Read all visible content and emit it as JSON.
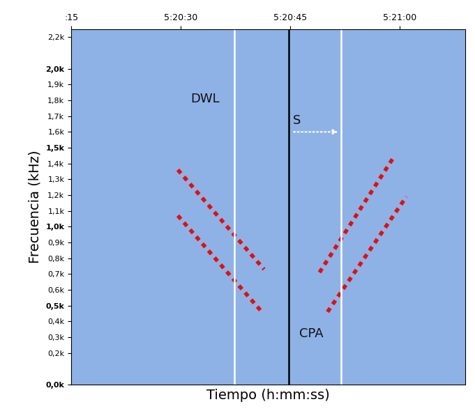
{
  "chart_data": {
    "type": "spectrogram",
    "x_label": "Tiempo (h:mm:ss)",
    "y_label": "Frecuencia (kHz)",
    "xlim": [
      15,
      69
    ],
    "xticks": [
      {
        "value": 15,
        "label": ":15"
      },
      {
        "value": 30,
        "label": "5:20:30"
      },
      {
        "value": 45,
        "label": "5:20:45"
      },
      {
        "value": 60,
        "label": "5:21:00"
      }
    ],
    "ylim": [
      0,
      2.25
    ],
    "yticks": [
      {
        "value": 0,
        "label": "0,0k"
      },
      {
        "value": 0.2,
        "label": "0,2k"
      },
      {
        "value": 0.3,
        "label": "0,3k"
      },
      {
        "value": 0.4,
        "label": "0,4k"
      },
      {
        "value": 0.5,
        "label": "0,5k"
      },
      {
        "value": 0.6,
        "label": "0,6k"
      },
      {
        "value": 0.7,
        "label": "0,7k"
      },
      {
        "value": 0.8,
        "label": "0,8k"
      },
      {
        "value": 0.9,
        "label": "0,9k"
      },
      {
        "value": 1.0,
        "label": "1,0k"
      },
      {
        "value": 1.1,
        "label": "1,1k"
      },
      {
        "value": 1.2,
        "label": "1,2k"
      },
      {
        "value": 1.3,
        "label": "1,3k"
      },
      {
        "value": 1.4,
        "label": "1,4k"
      },
      {
        "value": 1.5,
        "label": "1,5k"
      },
      {
        "value": 1.6,
        "label": "1,6k"
      },
      {
        "value": 1.7,
        "label": "1,7k"
      },
      {
        "value": 1.8,
        "label": "1,8k"
      },
      {
        "value": 1.9,
        "label": "1,9k"
      },
      {
        "value": 2.0,
        "label": "2,0k"
      },
      {
        "value": 2.2,
        "label": "2,2k"
      }
    ],
    "color": "#8fb2e6",
    "series": [
      {
        "type": "line",
        "color": "#e01010",
        "line_style": "dotted",
        "x": [
          29.6,
          41.4
        ],
        "values": [
          1.36,
          0.73
        ]
      },
      {
        "type": "line",
        "color": "#e01010",
        "line_style": "dotted",
        "x": [
          29.6,
          41.3
        ],
        "values": [
          1.07,
          0.45
        ]
      },
      {
        "type": "line",
        "color": "#e01010",
        "line_style": "dotted",
        "x": [
          49.0,
          59.3
        ],
        "values": [
          0.71,
          1.45
        ]
      },
      {
        "type": "line",
        "color": "#e01010",
        "line_style": "dotted",
        "x": [
          50.1,
          60.9
        ],
        "values": [
          0.46,
          1.19
        ]
      },
      {
        "type": "line",
        "color": "#ffffff",
        "line_style": "solid",
        "x": [
          37.3,
          37.3
        ],
        "values": [
          0,
          2.25
        ]
      },
      {
        "type": "line",
        "color": "#ffffff",
        "line_style": "solid",
        "x": [
          52.0,
          52.0
        ],
        "values": [
          0,
          2.25
        ]
      },
      {
        "type": "line",
        "color": "#000000",
        "line_style": "solid",
        "x": [
          44.8,
          44.8
        ],
        "values": [
          0,
          2.25
        ]
      },
      {
        "type": "arrow",
        "color": "#ffffff",
        "line_style": "dotted",
        "x": [
          45.2,
          51.8
        ],
        "values": [
          1.6,
          1.6
        ]
      }
    ],
    "annotations": [
      {
        "text": "DWL",
        "x": 33.3,
        "y": 1.81
      },
      {
        "text": "S",
        "x": 45.9,
        "y": 1.67
      },
      {
        "text": "CPA",
        "x": 47.9,
        "y": 0.32
      }
    ]
  }
}
